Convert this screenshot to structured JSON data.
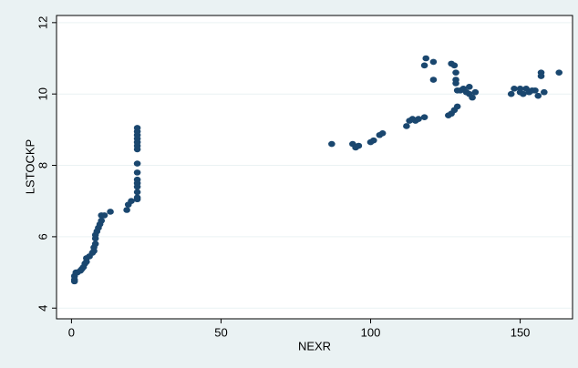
{
  "chart_data": {
    "type": "scatter",
    "x_label": "NEXR",
    "y_label": "LSTOCKP",
    "xlim": [
      -5,
      167.5
    ],
    "ylim": [
      3.7,
      12.2
    ],
    "xticks": [
      0,
      50,
      100,
      150
    ],
    "yticks": [
      4,
      6,
      8,
      10,
      12
    ],
    "grid": true,
    "color": "#1a476f",
    "x": [
      1,
      1,
      1,
      1.5,
      2,
      3,
      3.5,
      4,
      4.5,
      5,
      5,
      6,
      7,
      7.5,
      7.5,
      8,
      8,
      8,
      8.5,
      9,
      9.5,
      10,
      10,
      11,
      13,
      18.5,
      19,
      20,
      22,
      22,
      22,
      22,
      22,
      22,
      22,
      22,
      22,
      22,
      22,
      22,
      22,
      22,
      22,
      87,
      94,
      95,
      96,
      100,
      101,
      103,
      104,
      112,
      113,
      114,
      115,
      116,
      118,
      118,
      118.5,
      121,
      121,
      126,
      127,
      127,
      128,
      128,
      129,
      128.5,
      128.5,
      128.5,
      129,
      130,
      131,
      132,
      133,
      133,
      134,
      135,
      147,
      148,
      150,
      150,
      151,
      152,
      153,
      154,
      155,
      156,
      157,
      157,
      158,
      163
    ],
    "y": [
      4.75,
      4.8,
      4.9,
      5.0,
      5.0,
      5.05,
      5.1,
      5.15,
      5.25,
      5.3,
      5.4,
      5.45,
      5.55,
      5.6,
      5.7,
      5.8,
      5.95,
      6.05,
      6.15,
      6.25,
      6.35,
      6.45,
      6.6,
      6.6,
      6.7,
      6.75,
      6.9,
      7.0,
      7.05,
      7.1,
      7.25,
      7.4,
      7.5,
      7.6,
      7.8,
      8.05,
      8.45,
      8.55,
      8.65,
      8.75,
      8.85,
      8.95,
      9.05,
      8.6,
      8.6,
      8.5,
      8.55,
      8.65,
      8.7,
      8.85,
      8.9,
      9.1,
      9.25,
      9.3,
      9.25,
      9.3,
      9.35,
      10.8,
      11.0,
      10.9,
      10.4,
      9.4,
      9.45,
      10.85,
      10.8,
      9.55,
      9.65,
      10.6,
      10.4,
      10.3,
      10.1,
      10.1,
      10.15,
      10.05,
      10.2,
      10.0,
      9.9,
      10.05,
      10.0,
      10.15,
      10.05,
      10.15,
      10.0,
      10.15,
      10.05,
      10.1,
      10.1,
      9.95,
      10.5,
      10.6,
      10.05,
      10.6
    ]
  }
}
